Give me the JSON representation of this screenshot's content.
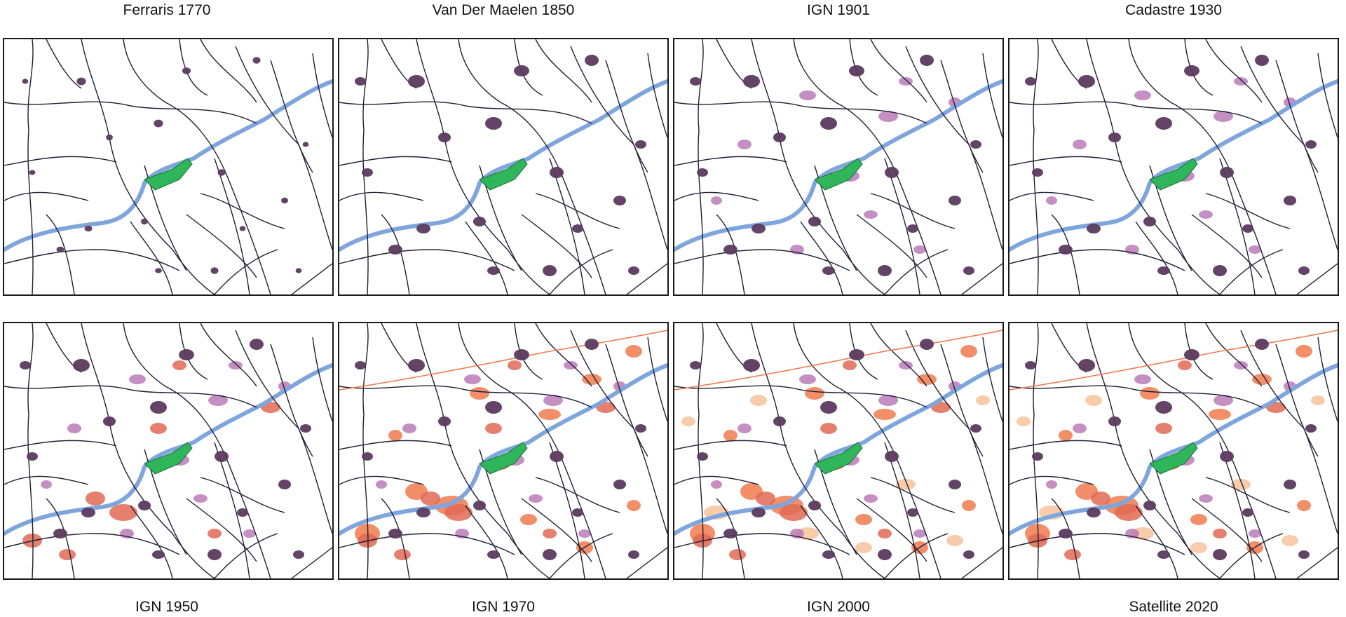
{
  "figure": {
    "panels": [
      {
        "title": "Ferraris 1770",
        "era": 0
      },
      {
        "title": "Van Der Maelen 1850",
        "era": 1
      },
      {
        "title": "IGN 1901",
        "era": 2
      },
      {
        "title": "Cadastre 1930",
        "era": 3
      },
      {
        "title": "IGN 1950",
        "era": 4
      },
      {
        "title": "IGN 1970",
        "era": 5
      },
      {
        "title": "IGN 2000",
        "era": 6
      },
      {
        "title": "Satellite 2020",
        "era": 7
      }
    ]
  },
  "colors": {
    "river": "#7fa6dc",
    "roads": "#1f1f33",
    "historic_settlement": "#5b3a5f",
    "growth_1900_1930": "#b773b5",
    "growth_1950": "#e06a55",
    "growth_1970_2000": "#f07a4e",
    "recent_growth": "#f6b98f",
    "town_centre": "#2fb55a",
    "frame": "#1a1a1a"
  }
}
